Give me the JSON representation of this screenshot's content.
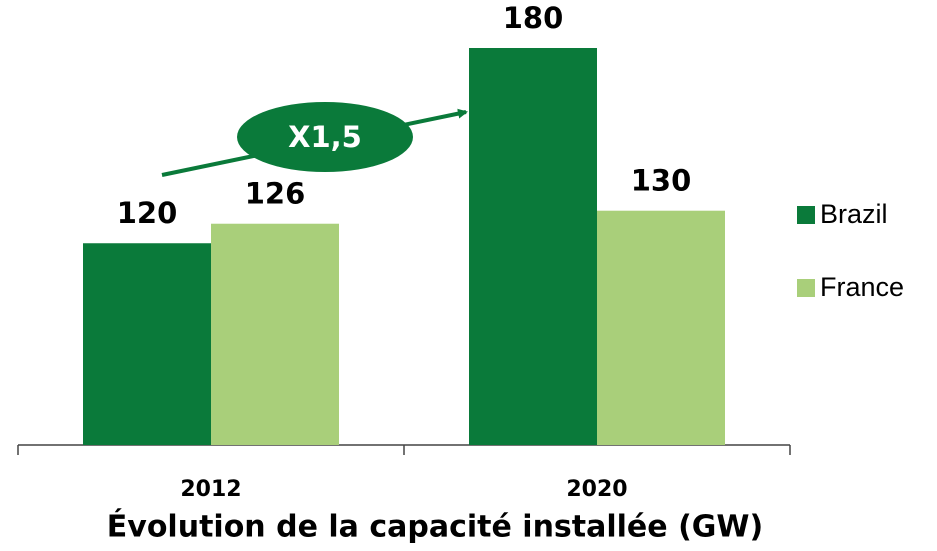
{
  "chart_data": {
    "type": "bar",
    "title": "Évolution de la capacité installée (GW)",
    "categories": [
      "2012",
      "2020"
    ],
    "series": [
      {
        "name": "Brazil",
        "color": "#0a7a3a",
        "values": [
          120,
          180
        ]
      },
      {
        "name": "France",
        "color": "#a9cf7a",
        "values": [
          126,
          130
        ]
      }
    ],
    "annotation": "X1,5",
    "ylim": [
      58,
      180
    ],
    "legend": "right"
  }
}
